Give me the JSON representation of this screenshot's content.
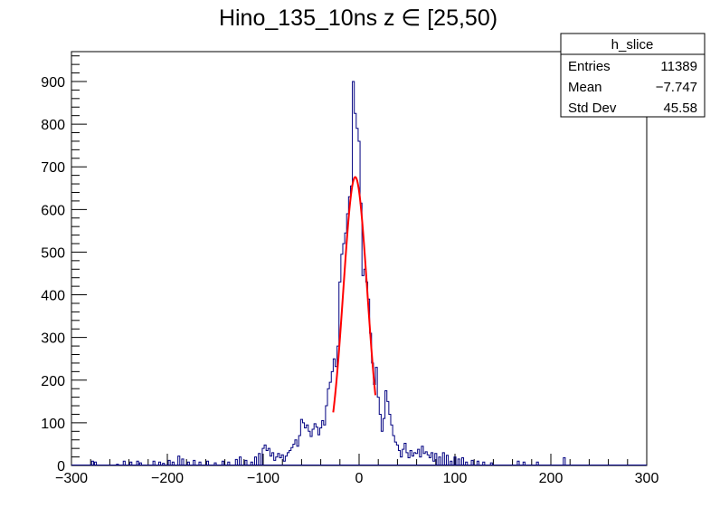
{
  "chart_data": {
    "type": "histogram",
    "title": "Hino_135_10ns z  ∈ [25,50)",
    "xlabel": "",
    "ylabel": "",
    "xlim": [
      -300,
      300
    ],
    "ylim": [
      0,
      970
    ],
    "x_ticks": [
      -300,
      -200,
      -100,
      0,
      100,
      200,
      300
    ],
    "y_ticks": [
      0,
      100,
      200,
      300,
      400,
      500,
      600,
      700,
      800,
      900
    ],
    "grid": false,
    "bin_width": 2,
    "histogram_color": "#000080",
    "bins": [
      [
        -278,
        10
      ],
      [
        -275,
        8
      ],
      [
        -252,
        3
      ],
      [
        -245,
        10
      ],
      [
        -238,
        8
      ],
      [
        -231,
        10
      ],
      [
        -228,
        6
      ],
      [
        -214,
        10
      ],
      [
        -208,
        8
      ],
      [
        -204,
        5
      ],
      [
        -198,
        12
      ],
      [
        -194,
        8
      ],
      [
        -188,
        22
      ],
      [
        -184,
        15
      ],
      [
        -178,
        8
      ],
      [
        -172,
        12
      ],
      [
        -166,
        8
      ],
      [
        -158,
        10
      ],
      [
        -150,
        6
      ],
      [
        -142,
        10
      ],
      [
        -136,
        8
      ],
      [
        -128,
        14
      ],
      [
        -124,
        20
      ],
      [
        -118,
        12
      ],
      [
        -112,
        8
      ],
      [
        -108,
        20
      ],
      [
        -104,
        28
      ],
      [
        -100,
        40
      ],
      [
        -98,
        48
      ],
      [
        -96,
        35
      ],
      [
        -94,
        40
      ],
      [
        -92,
        22
      ],
      [
        -90,
        30
      ],
      [
        -88,
        12
      ],
      [
        -86,
        20
      ],
      [
        -84,
        28
      ],
      [
        -82,
        18
      ],
      [
        -80,
        25
      ],
      [
        -78,
        10
      ],
      [
        -76,
        22
      ],
      [
        -74,
        30
      ],
      [
        -72,
        35
      ],
      [
        -70,
        42
      ],
      [
        -68,
        50
      ],
      [
        -66,
        60
      ],
      [
        -64,
        45
      ],
      [
        -62,
        70
      ],
      [
        -60,
        108
      ],
      [
        -58,
        100
      ],
      [
        -56,
        88
      ],
      [
        -54,
        95
      ],
      [
        -52,
        80
      ],
      [
        -50,
        68
      ],
      [
        -48,
        85
      ],
      [
        -46,
        98
      ],
      [
        -44,
        90
      ],
      [
        -42,
        72
      ],
      [
        -40,
        88
      ],
      [
        -38,
        105
      ],
      [
        -36,
        95
      ],
      [
        -34,
        140
      ],
      [
        -32,
        180
      ],
      [
        -30,
        195
      ],
      [
        -28,
        220
      ],
      [
        -26,
        250
      ],
      [
        -24,
        232
      ],
      [
        -22,
        280
      ],
      [
        -20,
        430
      ],
      [
        -18,
        495
      ],
      [
        -16,
        520
      ],
      [
        -14,
        545
      ],
      [
        -12,
        590
      ],
      [
        -10,
        630
      ],
      [
        -8,
        655
      ],
      [
        -6,
        900
      ],
      [
        -4,
        825
      ],
      [
        -2,
        790
      ],
      [
        0,
        760
      ],
      [
        2,
        615
      ],
      [
        4,
        445
      ],
      [
        6,
        460
      ],
      [
        8,
        430
      ],
      [
        10,
        390
      ],
      [
        12,
        310
      ],
      [
        14,
        240
      ],
      [
        16,
        190
      ],
      [
        18,
        230
      ],
      [
        20,
        160
      ],
      [
        22,
        120
      ],
      [
        24,
        80
      ],
      [
        26,
        110
      ],
      [
        28,
        175
      ],
      [
        30,
        150
      ],
      [
        32,
        120
      ],
      [
        34,
        95
      ],
      [
        36,
        70
      ],
      [
        38,
        55
      ],
      [
        40,
        48
      ],
      [
        42,
        35
      ],
      [
        44,
        20
      ],
      [
        46,
        38
      ],
      [
        48,
        52
      ],
      [
        50,
        30
      ],
      [
        52,
        18
      ],
      [
        54,
        35
      ],
      [
        56,
        22
      ],
      [
        58,
        30
      ],
      [
        60,
        28
      ],
      [
        62,
        38
      ],
      [
        64,
        20
      ],
      [
        66,
        45
      ],
      [
        68,
        28
      ],
      [
        70,
        32
      ],
      [
        72,
        25
      ],
      [
        74,
        18
      ],
      [
        76,
        30
      ],
      [
        78,
        10
      ],
      [
        80,
        28
      ],
      [
        84,
        20
      ],
      [
        88,
        30
      ],
      [
        92,
        24
      ],
      [
        96,
        10
      ],
      [
        100,
        20
      ],
      [
        104,
        15
      ],
      [
        108,
        18
      ],
      [
        112,
        8
      ],
      [
        118,
        12
      ],
      [
        124,
        10
      ],
      [
        130,
        8
      ],
      [
        138,
        6
      ],
      [
        166,
        10
      ],
      [
        172,
        8
      ],
      [
        186,
        8
      ],
      [
        214,
        18
      ]
    ],
    "fit": {
      "type": "gaussian",
      "color": "#ff0000",
      "amplitude": 676,
      "mean": -4,
      "sigma": 12.5,
      "range": [
        -27,
        17
      ]
    },
    "stats_box": {
      "name": "h_slice",
      "rows": [
        {
          "label": "Entries",
          "value": "11389"
        },
        {
          "label": "Mean",
          "value": "−7.747"
        },
        {
          "label": "Std Dev",
          "value": "45.58"
        }
      ]
    }
  }
}
